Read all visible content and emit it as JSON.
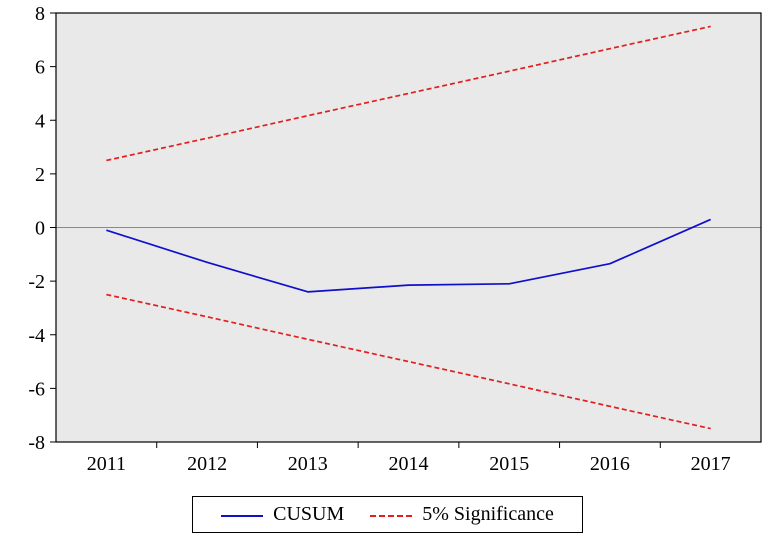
{
  "chart_data": {
    "type": "line",
    "title": "",
    "xlabel": "",
    "ylabel": "",
    "x": [
      2011,
      2012,
      2013,
      2014,
      2015,
      2016,
      2017
    ],
    "xticklabels": [
      "2011",
      "2012",
      "2013",
      "2014",
      "2015",
      "2016",
      "2017"
    ],
    "yticks": [
      -8,
      -6,
      -4,
      -2,
      0,
      2,
      4,
      6,
      8
    ],
    "ylim": [
      -8,
      8
    ],
    "xlim": [
      2010.5,
      2017.5
    ],
    "grid": false,
    "zero_line": true,
    "plot_bg": "#e9e9e9",
    "axis_color": "#000000",
    "zero_line_color": "#8a8a8a",
    "series": [
      {
        "name": "CUSUM",
        "color": "#0f0fcc",
        "style": "solid",
        "values": [
          -0.1,
          -1.3,
          -2.4,
          -2.15,
          -2.1,
          -1.35,
          0.3
        ]
      },
      {
        "name": "5% Significance upper bound",
        "color": "#e01f1f",
        "style": "dashed",
        "values": [
          2.5,
          3.33,
          4.17,
          5.0,
          5.83,
          6.67,
          7.5
        ]
      },
      {
        "name": "5% Significance lower bound",
        "color": "#e01f1f",
        "style": "dashed",
        "values": [
          -2.5,
          -3.33,
          -4.17,
          -5.0,
          -5.83,
          -6.67,
          -7.5
        ]
      }
    ],
    "legend": [
      {
        "label": "CUSUM",
        "color": "#0f0fcc",
        "style": "solid"
      },
      {
        "label": "5% Significance",
        "color": "#e01f1f",
        "style": "dashed"
      }
    ],
    "legend_position": "bottom"
  }
}
